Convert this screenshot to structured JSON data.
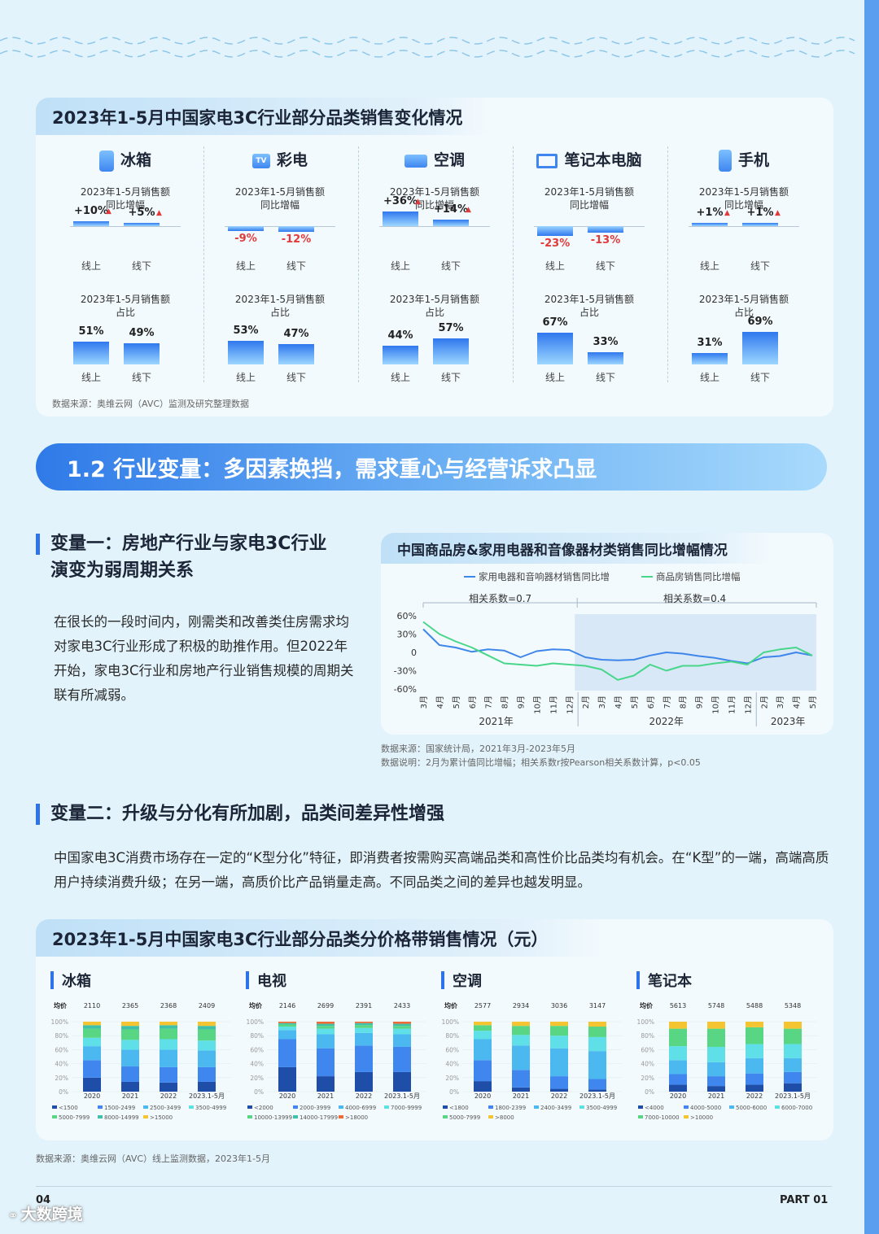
{
  "colors": {
    "accent": "#2d74e8",
    "negative": "#e23a3a",
    "fridge_series": [
      "#1f4ea8",
      "#3f86ee",
      "#4cb8f0",
      "#5fe0e8",
      "#58d684",
      "#3fc0a8",
      "#f5c431",
      "#ef6b35"
    ]
  },
  "section1": {
    "title": "2023年1-5月中国家电3C行业部分品类销售变化情况",
    "growth_caption": "2023年1-5月销售额\n同比增幅",
    "share_caption": "2023年1-5月销售额\n占比",
    "online": "线上",
    "offline": "线下",
    "categories": [
      {
        "name": "冰箱",
        "icon": "fridge-icon",
        "growth": [
          "+10%",
          "+5%"
        ],
        "growth_values": [
          10,
          5
        ],
        "share": [
          "51%",
          "49%"
        ],
        "share_values": [
          51,
          49
        ]
      },
      {
        "name": "彩电",
        "icon": "tv-icon",
        "icon_text": "TV",
        "growth": [
          "-9%",
          "-12%"
        ],
        "growth_values": [
          -9,
          -12
        ],
        "share": [
          "53%",
          "47%"
        ],
        "share_values": [
          53,
          47
        ]
      },
      {
        "name": "空调",
        "icon": "air-conditioner-icon",
        "growth": [
          "+36%",
          "+14%"
        ],
        "growth_values": [
          36,
          14
        ],
        "share": [
          "44%",
          "57%"
        ],
        "share_values": [
          44,
          57
        ]
      },
      {
        "name": "笔记本电脑",
        "icon": "laptop-icon",
        "growth": [
          "-23%",
          "-13%"
        ],
        "growth_values": [
          -23,
          -13
        ],
        "share": [
          "67%",
          "33%"
        ],
        "share_values": [
          67,
          33
        ]
      },
      {
        "name": "手机",
        "icon": "phone-icon",
        "growth": [
          "+1%",
          "+1%"
        ],
        "growth_values": [
          1,
          1
        ],
        "share": [
          "31%",
          "69%"
        ],
        "share_values": [
          31,
          69
        ]
      }
    ],
    "source": "数据来源：奥维云网（AVC）监测及研究整理数据"
  },
  "section_banner": "1.2 行业变量：多因素换挡，需求重心与经营诉求凸显",
  "variable1": {
    "heading": "变量一：房地产行业与家电3C行业\n演变为弱周期关系",
    "body": "在很长的一段时间内，刚需类和改善类住房需求均对家电3C行业形成了积极的助推作用。但2022年开始，家电3C行业和房地产行业销售规模的周期关联有所减弱。"
  },
  "line_chart": {
    "title": "中国商品房&家用电器和音像器材类销售同比增幅情况",
    "legend": [
      "家用电器和音响器材销售同比增",
      "商品房销售同比增幅"
    ],
    "corr": [
      "相关系数=0.7",
      "相关系数=0.4"
    ],
    "source": "数据来源：国家统计局，2021年3月-2023年5月",
    "note": "数据说明：2月为累计值同比增幅；相关系数r按Pearson相关系数计算，p<0.05"
  },
  "chart_data": [
    {
      "type": "line",
      "title": "中国商品房&家用电器和音像器材类销售同比增幅情况",
      "x": [
        "3月",
        "4月",
        "5月",
        "6月",
        "7月",
        "8月",
        "9月",
        "10月",
        "11月",
        "12月",
        "2月",
        "3月",
        "4月",
        "5月",
        "6月",
        "7月",
        "8月",
        "9月",
        "10月",
        "11月",
        "12月",
        "2月",
        "3月",
        "4月",
        "5月"
      ],
      "year_groups": [
        "2021年",
        "2022年",
        "2023年"
      ],
      "ytick_labels": [
        "60%",
        "30%",
        "0",
        "-30%",
        "-60%"
      ],
      "ylim": [
        -60,
        60
      ],
      "series": [
        {
          "name": "家用电器和音响器材销售同比增",
          "color": "#3e86ea",
          "values": [
            38,
            12,
            8,
            1,
            5,
            3,
            -8,
            2,
            5,
            4,
            -8,
            -12,
            -13,
            -12,
            -5,
            0,
            -2,
            -6,
            -9,
            -14,
            -18,
            -8,
            -6,
            0,
            -5
          ]
        },
        {
          "name": "商品房销售同比增幅",
          "color": "#47d68a",
          "values": [
            50,
            30,
            18,
            8,
            -5,
            -18,
            -20,
            -22,
            -18,
            -20,
            -22,
            -28,
            -45,
            -38,
            -20,
            -30,
            -22,
            -22,
            -18,
            -15,
            -20,
            0,
            5,
            8,
            -5
          ]
        }
      ]
    },
    {
      "type": "bar",
      "stacked": true,
      "title": "冰箱",
      "categories": [
        "2020",
        "2021",
        "2022",
        "2023.1-5月"
      ],
      "avg_price": [
        "2110",
        "2365",
        "2368",
        "2409"
      ],
      "ylim": [
        0,
        100
      ],
      "series": [
        {
          "name": "<1500",
          "values": [
            20,
            14,
            13,
            14
          ]
        },
        {
          "name": "1500-2499",
          "values": [
            25,
            22,
            22,
            21
          ]
        },
        {
          "name": "2500-3499",
          "values": [
            20,
            24,
            25,
            24
          ]
        },
        {
          "name": "3500-4999",
          "values": [
            12,
            14,
            15,
            14
          ]
        },
        {
          "name": "5000-7999",
          "values": [
            13,
            15,
            15,
            16
          ]
        },
        {
          "name": "8000-14999",
          "values": [
            5,
            5,
            5,
            5
          ]
        },
        {
          "name": ">15000",
          "values": [
            5,
            6,
            5,
            6
          ]
        }
      ]
    },
    {
      "type": "bar",
      "stacked": true,
      "title": "电视",
      "categories": [
        "2020",
        "2021",
        "2022",
        "2023.1-5月"
      ],
      "avg_price": [
        "2146",
        "2699",
        "2391",
        "2433"
      ],
      "ylim": [
        0,
        100
      ],
      "series": [
        {
          "name": "<2000",
          "values": [
            35,
            22,
            28,
            28
          ]
        },
        {
          "name": "2000-3999",
          "values": [
            40,
            40,
            38,
            36
          ]
        },
        {
          "name": "4000-6999",
          "values": [
            13,
            20,
            18,
            18
          ]
        },
        {
          "name": "7000-9999",
          "values": [
            5,
            8,
            7,
            8
          ]
        },
        {
          "name": "10000-13999",
          "values": [
            3,
            4,
            4,
            4
          ]
        },
        {
          "name": "14000-17999",
          "values": [
            2,
            3,
            3,
            3
          ]
        },
        {
          "name": ">18000",
          "values": [
            2,
            3,
            2,
            3
          ]
        }
      ]
    },
    {
      "type": "bar",
      "stacked": true,
      "title": "空调",
      "categories": [
        "2020",
        "2021",
        "2022",
        "2023.1-5月"
      ],
      "avg_price": [
        "2577",
        "2934",
        "3036",
        "3147"
      ],
      "ylim": [
        0,
        100
      ],
      "series": [
        {
          "name": "<1800",
          "values": [
            15,
            6,
            4,
            3
          ]
        },
        {
          "name": "1800-2399",
          "values": [
            30,
            25,
            18,
            15
          ]
        },
        {
          "name": "2400-3499",
          "values": [
            30,
            35,
            40,
            40
          ]
        },
        {
          "name": "3500-4999",
          "values": [
            12,
            15,
            18,
            20
          ]
        },
        {
          "name": "5000-7999",
          "values": [
            8,
            13,
            14,
            15
          ]
        },
        {
          "name": ">8000",
          "values": [
            5,
            6,
            6,
            7
          ]
        }
      ]
    },
    {
      "type": "bar",
      "stacked": true,
      "title": "笔记本",
      "categories": [
        "2020",
        "2021",
        "2022",
        "2023.1-5月"
      ],
      "avg_price": [
        "5613",
        "5748",
        "5488",
        "5348"
      ],
      "ylim": [
        0,
        100
      ],
      "series": [
        {
          "name": "<4000",
          "values": [
            10,
            8,
            10,
            12
          ]
        },
        {
          "name": "4000-5000",
          "values": [
            15,
            14,
            16,
            16
          ]
        },
        {
          "name": "5000-6000",
          "values": [
            20,
            20,
            22,
            20
          ]
        },
        {
          "name": "6000-7000",
          "values": [
            20,
            22,
            20,
            20
          ]
        },
        {
          "name": "7000-10000",
          "values": [
            25,
            26,
            24,
            22
          ]
        },
        {
          "name": ">10000",
          "values": [
            10,
            10,
            8,
            10
          ]
        }
      ]
    }
  ],
  "variable2": {
    "heading": "变量二：升级与分化有所加剧，品类间差异性增强",
    "body": "中国家电3C消费市场存在一定的“K型分化”特征，即消费者按需购买高端品类和高性价比品类均有机会。在“K型”的一端，高端高质用户持续消费升级；在另一端，高质价比产品销量走高。不同品类之间的差异也越发明显。"
  },
  "section3": {
    "title": "2023年1-5月中国家电3C行业部分品类分价格带销售情况（元）",
    "avg_label": "均价",
    "y_ticks": [
      "100%",
      "80%",
      "60%",
      "40%",
      "20%",
      "0%"
    ],
    "source": "数据来源：奥维云网（AVC）线上监测数据，2023年1-5月"
  },
  "footer": {
    "page": "04",
    "part": "PART 01",
    "watermark": "大数跨境"
  }
}
